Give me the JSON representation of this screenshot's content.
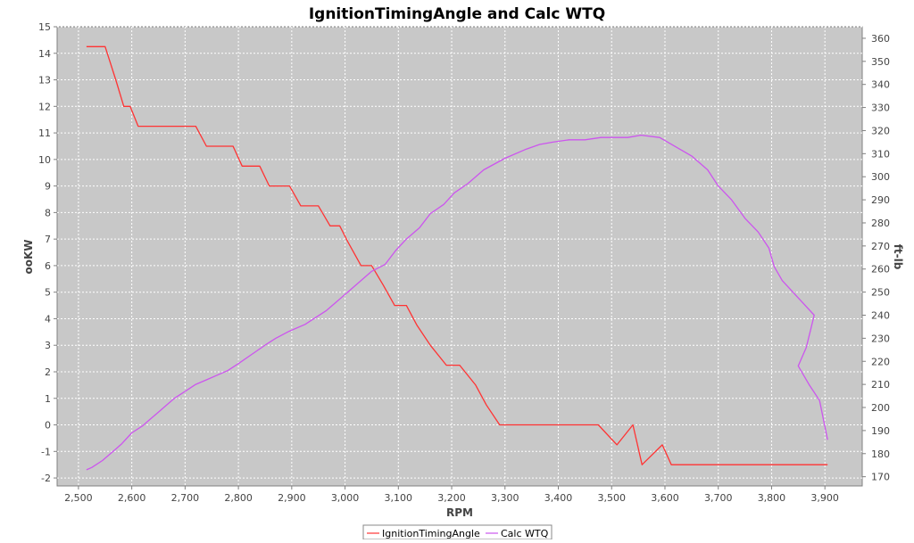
{
  "chart_data": {
    "type": "line",
    "title": "IgnitionTimingAngle and Calc WTQ",
    "xlabel": "RPM",
    "ylabel_left": "ooKW",
    "ylabel_right": "ft-lb",
    "xlim": [
      2460,
      3970
    ],
    "ylim_left": [
      -2.3,
      15
    ],
    "ylim_right": [
      166,
      365
    ],
    "x_ticks": [
      2500,
      2600,
      2700,
      2800,
      2900,
      3000,
      3100,
      3200,
      3300,
      3400,
      3500,
      3600,
      3700,
      3800,
      3900
    ],
    "x_tick_labels": [
      "2,500",
      "2,600",
      "2,700",
      "2,800",
      "2,900",
      "3,000",
      "3,100",
      "3,200",
      "3,300",
      "3,400",
      "3,500",
      "3,600",
      "3,700",
      "3,800",
      "3,900"
    ],
    "y_left_ticks": [
      -2,
      -1,
      0,
      1,
      2,
      3,
      4,
      5,
      6,
      7,
      8,
      9,
      10,
      11,
      12,
      13,
      14,
      15
    ],
    "y_left_tick_labels": [
      "-2",
      "-1",
      "0",
      "1",
      "2",
      "3",
      "4",
      "5",
      "6",
      "7",
      "8",
      "9",
      "10",
      "11",
      "12",
      "13",
      "14",
      "15"
    ],
    "y_right_ticks": [
      170,
      180,
      190,
      200,
      210,
      220,
      230,
      240,
      250,
      260,
      270,
      280,
      290,
      300,
      310,
      320,
      330,
      340,
      350,
      360
    ],
    "y_right_tick_labels": [
      "170",
      "180",
      "190",
      "200",
      "210",
      "220",
      "230",
      "240",
      "250",
      "260",
      "270",
      "280",
      "290",
      "300",
      "310",
      "320",
      "330",
      "340",
      "350",
      "360"
    ],
    "grid": true,
    "legend_position": "bottom-center",
    "plot_background": "#c8c8c8",
    "series": [
      {
        "name": "IgnitionTimingAngle",
        "axis": "left",
        "color": "#ff3333",
        "points": [
          [
            2515,
            14.25
          ],
          [
            2550,
            14.25
          ],
          [
            2570,
            13.0
          ],
          [
            2585,
            12.0
          ],
          [
            2597,
            12.0
          ],
          [
            2612,
            11.25
          ],
          [
            2720,
            11.25
          ],
          [
            2740,
            10.5
          ],
          [
            2790,
            10.5
          ],
          [
            2807,
            9.75
          ],
          [
            2840,
            9.75
          ],
          [
            2858,
            9.0
          ],
          [
            2896,
            9.0
          ],
          [
            2917,
            8.25
          ],
          [
            2950,
            8.25
          ],
          [
            2972,
            7.5
          ],
          [
            2990,
            7.5
          ],
          [
            3005,
            6.9
          ],
          [
            3030,
            6.0
          ],
          [
            3050,
            6.0
          ],
          [
            3072,
            5.25
          ],
          [
            3093,
            4.5
          ],
          [
            3115,
            4.5
          ],
          [
            3135,
            3.75
          ],
          [
            3160,
            3.0
          ],
          [
            3190,
            2.25
          ],
          [
            3215,
            2.25
          ],
          [
            3245,
            1.5
          ],
          [
            3265,
            0.75
          ],
          [
            3290,
            0.0
          ],
          [
            3475,
            0.0
          ],
          [
            3510,
            -0.75
          ],
          [
            3540,
            0.0
          ],
          [
            3557,
            -1.5
          ],
          [
            3595,
            -0.75
          ],
          [
            3612,
            -1.5
          ],
          [
            3905,
            -1.5
          ]
        ]
      },
      {
        "name": "Calc WTQ",
        "axis": "right",
        "color": "#cc55ee",
        "points": [
          [
            2515,
            173
          ],
          [
            2525,
            174
          ],
          [
            2545,
            177
          ],
          [
            2565,
            181
          ],
          [
            2580,
            184
          ],
          [
            2600,
            189
          ],
          [
            2620,
            192
          ],
          [
            2630,
            194
          ],
          [
            2650,
            198
          ],
          [
            2665,
            201
          ],
          [
            2680,
            204
          ],
          [
            2700,
            207
          ],
          [
            2720,
            210
          ],
          [
            2740,
            212
          ],
          [
            2760,
            214
          ],
          [
            2780,
            216
          ],
          [
            2800,
            219
          ],
          [
            2825,
            223
          ],
          [
            2850,
            227
          ],
          [
            2870,
            230
          ],
          [
            2895,
            233
          ],
          [
            2925,
            236
          ],
          [
            2945,
            239
          ],
          [
            2965,
            242
          ],
          [
            2985,
            246
          ],
          [
            3005,
            250
          ],
          [
            3025,
            254
          ],
          [
            3050,
            259
          ],
          [
            3075,
            262
          ],
          [
            3095,
            268
          ],
          [
            3115,
            273
          ],
          [
            3140,
            278
          ],
          [
            3160,
            284
          ],
          [
            3185,
            288
          ],
          [
            3205,
            293
          ],
          [
            3230,
            297
          ],
          [
            3260,
            303
          ],
          [
            3300,
            308
          ],
          [
            3340,
            312
          ],
          [
            3365,
            314
          ],
          [
            3390,
            315
          ],
          [
            3420,
            316
          ],
          [
            3450,
            316
          ],
          [
            3480,
            317
          ],
          [
            3505,
            317
          ],
          [
            3530,
            317
          ],
          [
            3555,
            318
          ],
          [
            3590,
            317
          ],
          [
            3620,
            313
          ],
          [
            3650,
            309
          ],
          [
            3680,
            303
          ],
          [
            3700,
            296
          ],
          [
            3725,
            290
          ],
          [
            3750,
            282
          ],
          [
            3775,
            276
          ],
          [
            3795,
            269
          ],
          [
            3805,
            261
          ],
          [
            3820,
            255
          ],
          [
            3840,
            250
          ],
          [
            3860,
            245
          ],
          [
            3880,
            240
          ],
          [
            3865,
            226
          ],
          [
            3850,
            218
          ],
          [
            3870,
            210
          ],
          [
            3890,
            203
          ],
          [
            3905,
            186
          ]
        ]
      }
    ]
  }
}
